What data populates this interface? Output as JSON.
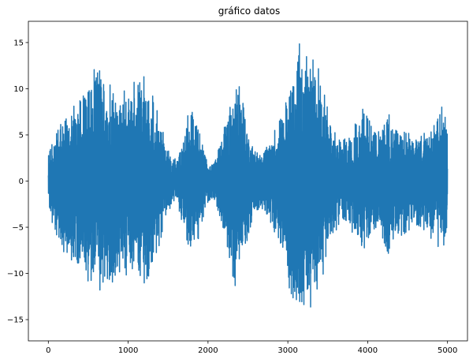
{
  "chart_data": {
    "type": "line",
    "title": "gráfico datos",
    "xlabel": "",
    "ylabel": "",
    "xlim": [
      -250,
      5250
    ],
    "ylim": [
      -17.3,
      17.3
    ],
    "x_ticks": [
      0,
      1000,
      2000,
      3000,
      4000,
      5000
    ],
    "x_tick_labels": [
      "0",
      "1000",
      "2000",
      "3000",
      "4000",
      "5000"
    ],
    "y_ticks": [
      -15,
      -10,
      -5,
      0,
      5,
      10,
      15
    ],
    "y_tick_labels": [
      "−15",
      "−10",
      "−5",
      "0",
      "5",
      "10",
      "15"
    ],
    "grid": false,
    "legend": "none",
    "series": [
      {
        "color": "#1f77b4",
        "n_points": 5000,
        "x_start": 0,
        "x_end": 4999,
        "envelope": {
          "x": [
            0,
            50,
            150,
            300,
            450,
            600,
            750,
            900,
            1050,
            1150,
            1250,
            1350,
            1450,
            1520,
            1600,
            1700,
            1750,
            1800,
            1900,
            1970,
            2030,
            2100,
            2200,
            2300,
            2350,
            2400,
            2500,
            2570,
            2650,
            2750,
            2850,
            2950,
            3050,
            3150,
            3250,
            3350,
            3450,
            3550,
            3650,
            3750,
            3850,
            3950,
            4050,
            4150,
            4250,
            4350,
            4450,
            4550,
            4650,
            4750,
            4850,
            4950,
            4999
          ],
          "upper": [
            3.0,
            5.0,
            7.0,
            8.0,
            10.5,
            13.3,
            12.0,
            9.5,
            11.0,
            12.5,
            11.0,
            8.0,
            5.0,
            3.0,
            2.5,
            4.5,
            7.5,
            8.3,
            6.0,
            3.0,
            2.0,
            2.5,
            6.0,
            10.5,
            12.0,
            10.0,
            6.0,
            3.5,
            3.0,
            4.0,
            6.0,
            9.0,
            12.0,
            15.8,
            14.0,
            14.5,
            10.0,
            6.0,
            5.0,
            4.5,
            6.5,
            8.5,
            6.0,
            5.5,
            7.5,
            6.0,
            6.5,
            5.0,
            5.5,
            6.0,
            6.5,
            9.5,
            6.3
          ],
          "lower": [
            -3.0,
            -5.0,
            -7.5,
            -9.0,
            -11.0,
            -13.5,
            -12.0,
            -10.0,
            -11.0,
            -12.5,
            -11.0,
            -8.5,
            -5.0,
            -3.0,
            -2.5,
            -5.0,
            -7.5,
            -8.0,
            -6.0,
            -3.0,
            -2.0,
            -2.5,
            -6.0,
            -10.5,
            -12.0,
            -10.0,
            -6.5,
            -4.0,
            -3.0,
            -4.0,
            -6.0,
            -9.5,
            -13.0,
            -15.7,
            -14.0,
            -14.5,
            -10.0,
            -6.0,
            -5.0,
            -4.5,
            -6.5,
            -8.0,
            -5.5,
            -5.5,
            -8.5,
            -6.0,
            -6.5,
            -5.0,
            -5.0,
            -6.0,
            -6.5,
            -8.5,
            -6.5
          ]
        }
      }
    ]
  }
}
